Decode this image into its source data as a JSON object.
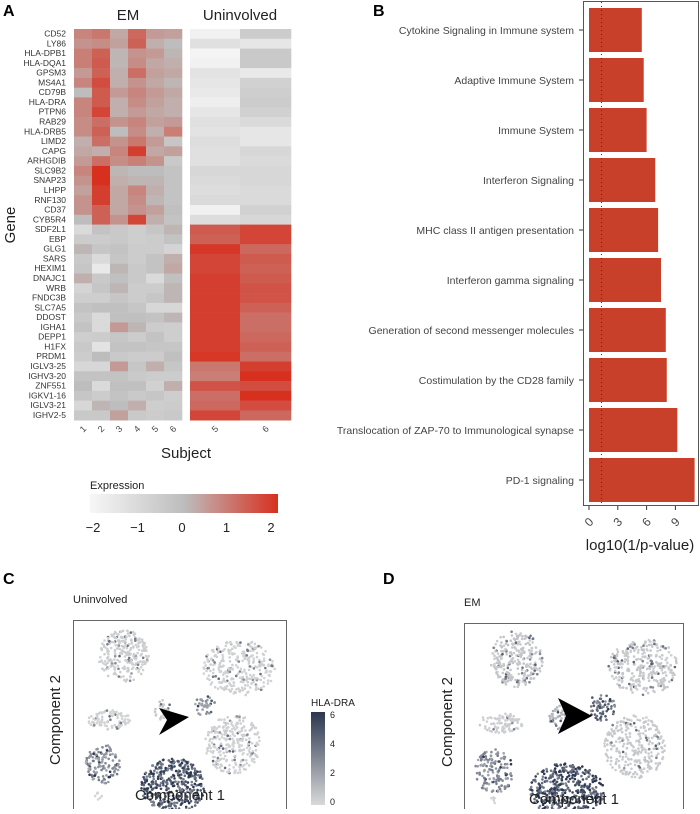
{
  "panel_letters": [
    "A",
    "B",
    "C",
    "D"
  ],
  "chart_data": [
    {
      "type": "heatmap",
      "groups": [
        "EM",
        "Uninvolved"
      ],
      "xlabel": "Subject",
      "ylabel": "Gene",
      "columns": [
        {
          "group": "EM",
          "label": "1"
        },
        {
          "group": "EM",
          "label": "2"
        },
        {
          "group": "EM",
          "label": "3"
        },
        {
          "group": "EM",
          "label": "4"
        },
        {
          "group": "EM",
          "label": "5"
        },
        {
          "group": "EM",
          "label": "6"
        },
        {
          "group": "Uninvolved",
          "label": "5"
        },
        {
          "group": "Uninvolved",
          "label": "6"
        }
      ],
      "genes": [
        "CD52",
        "LY86",
        "HLA-DPB1",
        "HLA-DQA1",
        "GPSM3",
        "MS4A1",
        "CD79B",
        "HLA-DRA",
        "PTPN6",
        "RAB29",
        "HLA-DRB5",
        "LIMD2",
        "CAPG",
        "ARHGDIB",
        "SLC9B2",
        "SNAP23",
        "LHPP",
        "RNF130",
        "CD37",
        "CYB5R4",
        "SDF2L1",
        "EBP",
        "GLG1",
        "SARS",
        "HEXIM1",
        "DNAJC1",
        "WRB",
        "FNDC3B",
        "SLC7A5",
        "DDOST",
        "IGHA1",
        "DEPP1",
        "H1FX",
        "PRDM1",
        "IGLV3-25",
        "IGHV3-20",
        "ZNF551",
        "IGKV1-16",
        "IGLV3-21",
        "IGHV2-5"
      ],
      "values": [
        [
          0.8,
          1.0,
          0.3,
          1.2,
          0.5,
          0.4,
          -1.8,
          -0.5
        ],
        [
          0.6,
          0.7,
          0.4,
          1.3,
          0.2,
          0.0,
          -1.2,
          -1.4
        ],
        [
          0.9,
          1.3,
          0.1,
          0.6,
          0.5,
          0.1,
          -1.9,
          -0.4
        ],
        [
          0.9,
          1.4,
          0.1,
          0.7,
          0.3,
          0.2,
          -1.8,
          -0.4
        ],
        [
          0.5,
          1.3,
          0.2,
          1.1,
          0.4,
          0.3,
          -1.3,
          -1.5
        ],
        [
          0.8,
          1.6,
          0.2,
          0.6,
          0.3,
          0.1,
          -1.4,
          -0.7
        ],
        [
          0.0,
          1.4,
          0.5,
          0.8,
          0.5,
          0.3,
          -1.5,
          -0.6
        ],
        [
          0.8,
          1.4,
          0.2,
          0.7,
          0.4,
          0.2,
          -1.7,
          -0.5
        ],
        [
          0.8,
          1.7,
          0.2,
          0.5,
          0.3,
          0.2,
          -1.4,
          -0.7
        ],
        [
          0.7,
          1.1,
          0.6,
          0.8,
          0.4,
          0.5,
          -1.2,
          -1.0
        ],
        [
          0.7,
          1.3,
          0.0,
          0.7,
          0.2,
          0.9,
          -1.3,
          -1.4
        ],
        [
          0.2,
          1.1,
          0.6,
          1.0,
          0.5,
          -0.3,
          -1.1,
          -1.4
        ],
        [
          0.3,
          0.2,
          0.8,
          1.8,
          0.3,
          0.4,
          -1.2,
          -0.9
        ],
        [
          0.5,
          1.1,
          0.7,
          0.9,
          0.6,
          -0.4,
          -1.2,
          -1.0
        ],
        [
          0.8,
          2.2,
          0.1,
          0.0,
          0.0,
          -0.2,
          -0.9,
          -0.9
        ],
        [
          0.6,
          2.1,
          0.2,
          0.1,
          0.1,
          -0.2,
          -1.0,
          -0.9
        ],
        [
          0.4,
          1.8,
          0.3,
          0.8,
          0.2,
          -0.2,
          -1.1,
          -1.0
        ],
        [
          0.6,
          1.8,
          0.3,
          0.7,
          0.1,
          -0.2,
          -1.0,
          -1.0
        ],
        [
          0.6,
          1.3,
          0.3,
          0.6,
          0.4,
          -0.1,
          -1.8,
          -0.7
        ],
        [
          0.0,
          1.3,
          0.6,
          1.7,
          0.2,
          -0.2,
          -1.1,
          -0.9
        ],
        [
          -1.0,
          -0.2,
          -0.4,
          -0.6,
          -0.3,
          0.1,
          1.4,
          1.7
        ],
        [
          -0.5,
          -0.5,
          -0.4,
          -0.6,
          -0.5,
          -0.2,
          1.3,
          1.7
        ],
        [
          0.1,
          -0.3,
          -0.2,
          -0.5,
          -0.5,
          -0.8,
          1.9,
          1.2
        ],
        [
          -0.4,
          -1.0,
          -0.3,
          -0.5,
          -0.2,
          0.2,
          1.7,
          1.4
        ],
        [
          -0.3,
          -1.5,
          0.1,
          -0.4,
          -0.2,
          0.3,
          1.7,
          1.3
        ],
        [
          0.2,
          -0.4,
          -0.1,
          -0.4,
          -1.0,
          -0.1,
          1.8,
          1.4
        ],
        [
          -0.8,
          -0.3,
          0.1,
          -0.5,
          -0.5,
          0.1,
          1.8,
          1.5
        ],
        [
          -0.6,
          -0.6,
          -0.3,
          -0.5,
          -0.3,
          0.1,
          1.8,
          1.5
        ],
        [
          -0.2,
          -0.1,
          -0.1,
          -0.3,
          -0.9,
          -0.9,
          1.8,
          1.3
        ],
        [
          -0.4,
          -1.0,
          -0.1,
          -0.1,
          -0.2,
          0.1,
          1.8,
          1.1
        ],
        [
          -0.2,
          -1.0,
          0.5,
          0.1,
          -0.5,
          -0.6,
          1.8,
          1.1
        ],
        [
          -0.6,
          -0.5,
          -0.3,
          -0.5,
          -0.2,
          -0.6,
          1.8,
          1.2
        ],
        [
          -0.4,
          -1.3,
          -0.2,
          -0.2,
          -0.3,
          -0.3,
          1.8,
          1.3
        ],
        [
          -0.5,
          0.0,
          -0.4,
          -0.5,
          -0.5,
          -0.1,
          1.9,
          1.1
        ],
        [
          -0.9,
          -0.9,
          0.5,
          -0.3,
          0.2,
          -0.3,
          1.0,
          1.8
        ],
        [
          -0.2,
          -0.2,
          -0.2,
          -0.4,
          -0.5,
          -0.5,
          0.9,
          2.2
        ],
        [
          0.0,
          -1.0,
          -0.1,
          -0.1,
          -0.7,
          0.2,
          1.5,
          1.6
        ],
        [
          -0.3,
          -0.5,
          -0.2,
          -0.4,
          -0.3,
          -0.6,
          1.1,
          2.0
        ],
        [
          -0.9,
          0.1,
          0.0,
          0.2,
          -0.6,
          -0.5,
          1.2,
          1.6
        ],
        [
          -0.4,
          -0.4,
          0.4,
          -0.4,
          -0.5,
          -0.4,
          1.7,
          1.2
        ]
      ],
      "legend": {
        "title": "Expression",
        "ticks": [
          "−2",
          "−1",
          "0",
          "1",
          "2"
        ],
        "range": [
          -2,
          2
        ],
        "colors": {
          "low": "#f7f7f7",
          "mid": "#bdbdbd",
          "high": "#d7301f"
        }
      }
    },
    {
      "type": "bar",
      "orientation": "horizontal",
      "categories": [
        "Cytokine Signaling in Immune system",
        "Adaptive Immune System",
        "Immune System",
        "Interferon Signaling",
        "MHC class II antigen presentation",
        "Interferon gamma signaling",
        "Generation of second messenger molecules",
        "Costimulation by the CD28 family",
        "Translocation of ZAP-70 to Immunological synapse",
        "PD-1 signaling"
      ],
      "values": [
        5.5,
        5.7,
        6.0,
        6.9,
        7.2,
        7.5,
        8.0,
        8.1,
        9.2,
        11.0
      ],
      "xlabel": "log10(1/p-value)",
      "xticks": [
        "0",
        "3",
        "6",
        "9"
      ],
      "xlim": [
        0,
        11.3
      ],
      "reference_line": 1.3,
      "bar_color": "#c9402a"
    },
    {
      "type": "scatter",
      "title": "Uninvolved",
      "xlabel": "Component 1",
      "ylabel": "Component 2",
      "color_by": "HLA-DRA",
      "legend": {
        "title": "HLA-DRA",
        "ticks": [
          "6",
          "4",
          "2",
          "0"
        ],
        "range": [
          0,
          6
        ],
        "colors": {
          "low": "#d9d9d9",
          "high": "#2b3750"
        }
      }
    },
    {
      "type": "scatter",
      "title": "EM",
      "xlabel": "Component 1",
      "ylabel": "Component 2",
      "color_by": "HLA-DRA"
    }
  ]
}
